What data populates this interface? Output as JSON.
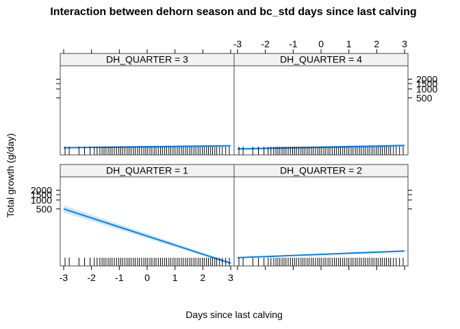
{
  "chart_data": {
    "type": "line",
    "title": "Interaction between dehorn season and bc_std days since last calving",
    "xlabel": "Days since last calving",
    "ylabel": "Total growth (g/day)",
    "xlim": [
      -3,
      3
    ],
    "x_ticks": [
      -3,
      -2,
      -1,
      0,
      1,
      2,
      3
    ],
    "y_ticks": [
      500,
      1000,
      1500,
      2000
    ],
    "grid": false,
    "legend": "none",
    "colors": {
      "line": "#0080ff",
      "band": "#cfe6fb",
      "strip": "#f2f2f2",
      "frame": "#444444"
    },
    "panels": [
      {
        "label": "DH_QUARTER = 3",
        "x": [
          -3,
          3
        ],
        "fit": [
          0.08,
          0.103
        ],
        "lower": [
          0.07,
          0.094
        ],
        "upper": [
          0.092,
          0.112
        ]
      },
      {
        "label": "DH_QUARTER = 4",
        "x": [
          -3,
          3
        ],
        "fit": [
          0.067,
          0.105
        ],
        "lower": [
          0.058,
          0.091
        ],
        "upper": [
          0.079,
          0.121
        ]
      },
      {
        "label": "DH_QUARTER = 1",
        "x": [
          -3,
          3
        ],
        "fit": [
          0.64,
          0.03
        ],
        "lower": [
          0.6,
          0.02
        ],
        "upper": [
          0.68,
          0.044
        ]
      },
      {
        "label": "DH_QUARTER = 2",
        "x": [
          -3,
          3
        ],
        "fit": [
          0.093,
          0.167
        ],
        "lower": [
          0.086,
          0.158
        ],
        "upper": [
          0.101,
          0.177
        ]
      }
    ],
    "rug_x": [
      -2.95,
      -2.8,
      -2.45,
      -2.25,
      -2.05,
      -1.9,
      -1.8,
      -1.7,
      -1.62,
      -1.55,
      -1.48,
      -1.4,
      -1.33,
      -1.26,
      -1.18,
      -1.1,
      -1.02,
      -0.95,
      -0.88,
      -0.8,
      -0.72,
      -0.65,
      -0.58,
      -0.5,
      -0.43,
      -0.35,
      -0.28,
      -0.2,
      -0.12,
      -0.05,
      0.02,
      0.1,
      0.17,
      0.25,
      0.32,
      0.4,
      0.48,
      0.55,
      0.63,
      0.7,
      0.78,
      0.85,
      0.93,
      1.0,
      1.08,
      1.15,
      1.23,
      1.3,
      1.38,
      1.45,
      1.53,
      1.6,
      1.68,
      1.75,
      1.83,
      1.9,
      1.98,
      2.05,
      2.13,
      2.2,
      2.28,
      2.35,
      2.43,
      2.5,
      2.6,
      2.7,
      2.82,
      2.95
    ]
  }
}
